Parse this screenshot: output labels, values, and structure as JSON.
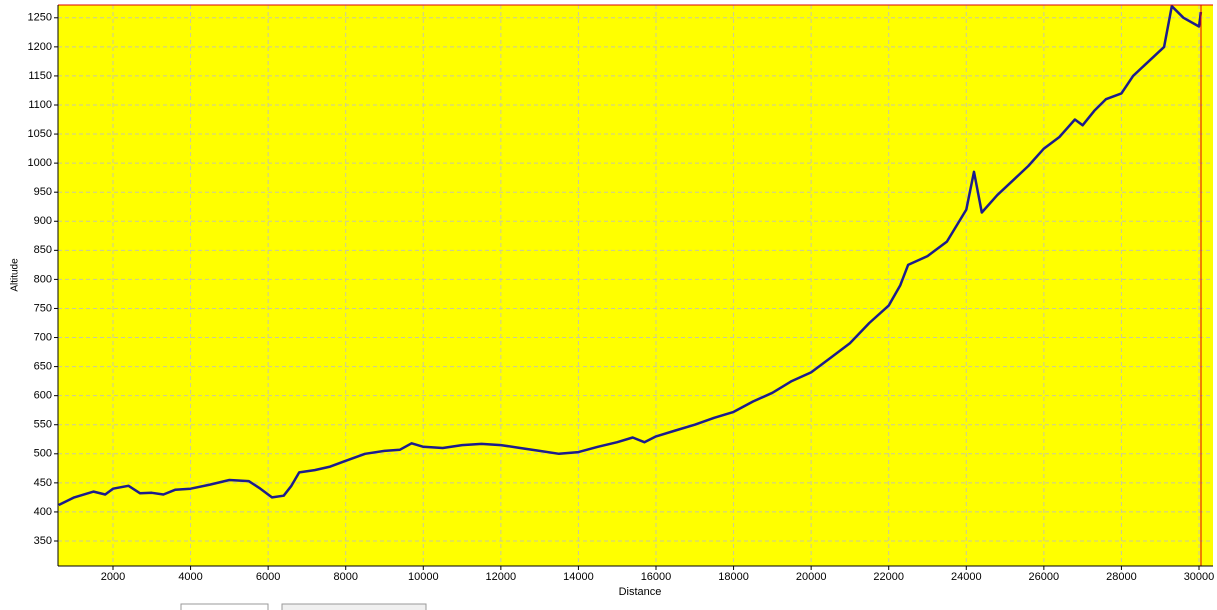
{
  "chart_data": {
    "type": "line",
    "x_label": "Distance",
    "y_label": "Altitude",
    "xlim": [
      582,
      30361
    ],
    "ylim": [
      307,
      1272
    ],
    "xticks": [
      2000,
      4000,
      6000,
      8000,
      10000,
      12000,
      14000,
      16000,
      18000,
      20000,
      22000,
      24000,
      26000,
      28000,
      30000
    ],
    "yticks": [
      350,
      400,
      450,
      500,
      550,
      600,
      650,
      700,
      750,
      800,
      850,
      900,
      950,
      1000,
      1050,
      1100,
      1150,
      1200,
      1250
    ],
    "grid": true,
    "background": "#ffff00",
    "series": [
      {
        "color": "#1c1c8c",
        "x": [
          600,
          1000,
          1500,
          1800,
          2000,
          2400,
          2700,
          3000,
          3300,
          3600,
          4000,
          4500,
          5000,
          5500,
          5800,
          6100,
          6400,
          6600,
          6800,
          7200,
          7600,
          8000,
          8500,
          9000,
          9400,
          9700,
          10000,
          10500,
          11000,
          11500,
          12000,
          12500,
          13000,
          13500,
          14000,
          14500,
          15000,
          15400,
          15700,
          16000,
          16500,
          17000,
          17500,
          18000,
          18500,
          19000,
          19500,
          20000,
          20500,
          21000,
          21500,
          22000,
          22300,
          22500,
          23000,
          23500,
          24000,
          24200,
          24400,
          24800,
          25200,
          25600,
          26000,
          26400,
          26800,
          27000,
          27300,
          27600,
          28000,
          28300,
          28700,
          29100,
          29300,
          29600,
          30000,
          30050
        ],
        "values": [
          412,
          425,
          435,
          430,
          440,
          445,
          432,
          433,
          430,
          438,
          440,
          447,
          455,
          453,
          440,
          425,
          428,
          445,
          468,
          472,
          478,
          488,
          500,
          505,
          507,
          518,
          512,
          510,
          515,
          517,
          515,
          510,
          505,
          500,
          503,
          512,
          520,
          528,
          520,
          530,
          540,
          550,
          562,
          572,
          590,
          605,
          625,
          640,
          665,
          690,
          725,
          755,
          790,
          825,
          840,
          865,
          920,
          985,
          915,
          945,
          970,
          995,
          1025,
          1045,
          1075,
          1065,
          1090,
          1110,
          1120,
          1150,
          1175,
          1200,
          1270,
          1250,
          1235,
          1260
        ]
      }
    ]
  }
}
